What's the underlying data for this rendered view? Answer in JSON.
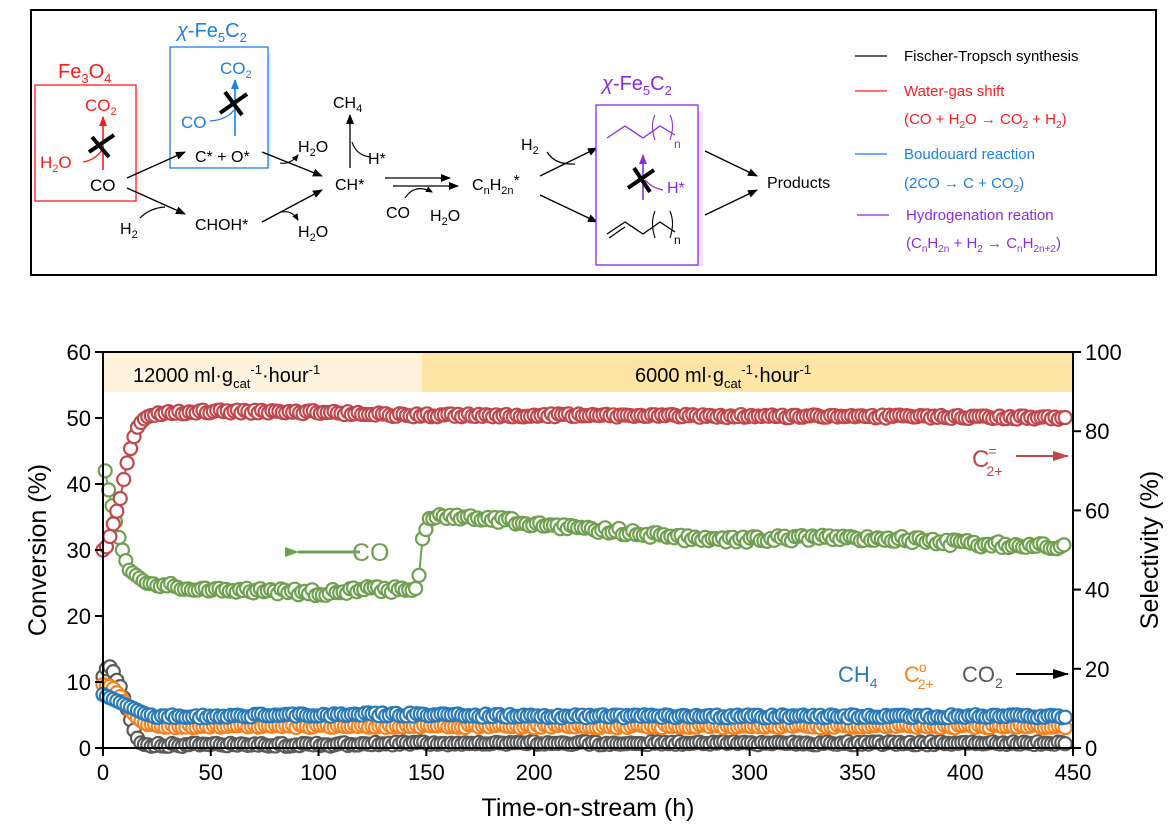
{
  "scheme": {
    "fe3o4_label": "Fe",
    "fe3o4_sub1": "3",
    "fe3o4_o": "O",
    "fe3o4_sub2": "4",
    "wgs_box": {
      "product": "CO",
      "product_sub": "2",
      "reactant": "H",
      "reactant_sub": "2",
      "reactant_tail": "O",
      "co": "CO"
    },
    "fe5c2_top_label": {
      "chi": "χ",
      "text": "-Fe",
      "sub1": "5",
      "c": "C",
      "sub2": "2"
    },
    "boudouard_box": {
      "product": "CO",
      "product_sub": "2",
      "reactant": "CO",
      "species": "C* + O*"
    },
    "h2_left": {
      "h": "H",
      "sub": "2"
    },
    "chohstar": "CHOH*",
    "h2o_upper": {
      "h": "H",
      "sub": "2",
      "o": "O"
    },
    "h2o_lower": {
      "h": "H",
      "sub": "2",
      "o": "O"
    },
    "ch4": {
      "c": "CH",
      "sub": "4"
    },
    "hstar_top": "H*",
    "chstar": "CH*",
    "co_mid": "CO",
    "h2o_mid": {
      "h": "H",
      "sub": "2",
      "o": "O"
    },
    "cnh2n": {
      "c": "C",
      "sub1": "n",
      "h": "H",
      "sub2": "2n",
      "star": "*"
    },
    "h2_right": {
      "h": "H",
      "sub": "2"
    },
    "fe5c2_right_label": {
      "chi": "χ",
      "text": "-Fe",
      "sub1": "5",
      "c": "C",
      "sub2": "2"
    },
    "chain_n_top": "n",
    "chain_n_bottom": "n",
    "hstar_purple": "H*",
    "products": "Products",
    "legend": [
      {
        "label": "Fischer-Tropsch synthesis",
        "color": "#000000"
      },
      {
        "label": "Water-gas shift",
        "color": "#ff1a1a",
        "eq": [
          "(CO + H",
          "2",
          "O → CO",
          "2",
          " + H",
          "2",
          ")"
        ]
      },
      {
        "label": "Boudouard reaction",
        "color": "#1a7fe6",
        "eq": [
          "(2CO → C + CO",
          "2",
          ")"
        ]
      },
      {
        "label": "Hydrogenation reation",
        "color": "#8a2be2",
        "eq": [
          "(C",
          "n",
          "H",
          "2n",
          " + H",
          "2",
          " → C",
          "n",
          "H",
          "2n+2",
          ")"
        ]
      }
    ],
    "colors": {
      "red": "#ff1a1a",
      "blue": "#1a7fe6",
      "purple": "#8a2be2"
    }
  },
  "chart_data": {
    "type": "scatter",
    "xlabel": "Time-on-stream (h)",
    "ylabel_left": "Conversion (%)",
    "ylabel_right": "Selectivity (%)",
    "xlim": [
      0,
      450
    ],
    "ylim_left": [
      0,
      60
    ],
    "ylim_right": [
      0,
      100
    ],
    "x_ticks": [
      "0",
      "50",
      "100",
      "150",
      "200",
      "250",
      "300",
      "350",
      "400",
      "450"
    ],
    "y_ticks_left": [
      "0",
      "10",
      "20",
      "30",
      "40",
      "50",
      "60"
    ],
    "y_ticks_right": [
      "0",
      "20",
      "40",
      "60",
      "80",
      "100"
    ],
    "bands": [
      {
        "label": "12000 ml·g",
        "sub": "cat",
        "sup1": "-1",
        "mid": "·hour",
        "sup2": "-1",
        "x_range": [
          0,
          148
        ],
        "color": "#fdf3dc"
      },
      {
        "label": "6000 ml·g",
        "sub": "cat",
        "sup1": "-1",
        "mid": "·hour",
        "sup2": "-1",
        "x_range": [
          148,
          450
        ],
        "color": "#fde6a5"
      }
    ],
    "series": [
      {
        "name": "C2+=",
        "axis": "right",
        "color": "#c0474b",
        "label": {
          "c": "C",
          "sup": "=",
          "sub": "2+"
        },
        "keypoints": [
          [
            0,
            50
          ],
          [
            2,
            51
          ],
          [
            4,
            55
          ],
          [
            6,
            59
          ],
          [
            8,
            63
          ],
          [
            10,
            69
          ],
          [
            12,
            74
          ],
          [
            14,
            78
          ],
          [
            16,
            81
          ],
          [
            18,
            82.5
          ],
          [
            20,
            83.5
          ],
          [
            25,
            84.5
          ],
          [
            50,
            85
          ],
          [
            100,
            84.8
          ],
          [
            140,
            84
          ],
          [
            200,
            84
          ],
          [
            300,
            83.8
          ],
          [
            400,
            83.6
          ],
          [
            447,
            83.3
          ]
        ]
      },
      {
        "name": "CO",
        "axis": "left",
        "color": "#6fa050",
        "label": "CO",
        "keypoints": [
          [
            1,
            42
          ],
          [
            2,
            40
          ],
          [
            4,
            37
          ],
          [
            6,
            34
          ],
          [
            8,
            31
          ],
          [
            10,
            29
          ],
          [
            12,
            27
          ],
          [
            16,
            26
          ],
          [
            20,
            25
          ],
          [
            30,
            24.5
          ],
          [
            60,
            24
          ],
          [
            100,
            23.5
          ],
          [
            120,
            24
          ],
          [
            146,
            24
          ],
          [
            148,
            31.5
          ],
          [
            152,
            35
          ],
          [
            170,
            35
          ],
          [
            200,
            34
          ],
          [
            250,
            32.5
          ],
          [
            280,
            31.5
          ],
          [
            320,
            31.8
          ],
          [
            360,
            31.8
          ],
          [
            400,
            31
          ],
          [
            447,
            30.5
          ]
        ]
      },
      {
        "name": "CH4",
        "axis": "right",
        "color": "#2a7ab8",
        "label": {
          "c": "CH",
          "sub": "4"
        },
        "keypoints": [
          [
            0,
            13.5
          ],
          [
            4,
            12.5
          ],
          [
            8,
            11.5
          ],
          [
            12,
            10.5
          ],
          [
            16,
            9.5
          ],
          [
            20,
            8.5
          ],
          [
            25,
            8
          ],
          [
            50,
            8
          ],
          [
            130,
            8.5
          ],
          [
            200,
            8
          ],
          [
            300,
            8
          ],
          [
            447,
            8
          ]
        ]
      },
      {
        "name": "C2+o",
        "axis": "right",
        "color": "#f5821f",
        "label": {
          "c": "C",
          "sup": "o",
          "sub": "2+"
        },
        "keypoints": [
          [
            0,
            16
          ],
          [
            4,
            15.5
          ],
          [
            8,
            13
          ],
          [
            12,
            10
          ],
          [
            16,
            7.5
          ],
          [
            20,
            6
          ],
          [
            25,
            5.5
          ],
          [
            100,
            5.5
          ],
          [
            447,
            5.5
          ]
        ]
      },
      {
        "name": "CO2",
        "axis": "right",
        "color": "#5a5a5a",
        "label": {
          "c": "CO",
          "sub": "2"
        },
        "keypoints": [
          [
            0,
            18
          ],
          [
            2,
            20.5
          ],
          [
            4,
            20.5
          ],
          [
            6,
            17.5
          ],
          [
            8,
            15.5
          ],
          [
            10,
            12
          ],
          [
            12,
            8.5
          ],
          [
            14,
            5
          ],
          [
            16,
            2.5
          ],
          [
            18,
            1
          ],
          [
            20,
            0.8
          ],
          [
            100,
            0.8
          ],
          [
            148,
            1.2
          ],
          [
            447,
            1.2
          ]
        ]
      }
    ],
    "annotations": [
      {
        "text": "CO",
        "arrow": "left",
        "series": "CO"
      },
      {
        "text": "C2+=",
        "arrow": "right",
        "series": "C2+="
      },
      {
        "text": "CH4 C2+o CO2",
        "arrow": "right",
        "series": "CH4,C2+o,CO2"
      }
    ],
    "grid": false,
    "legend": "inline-annotations"
  }
}
